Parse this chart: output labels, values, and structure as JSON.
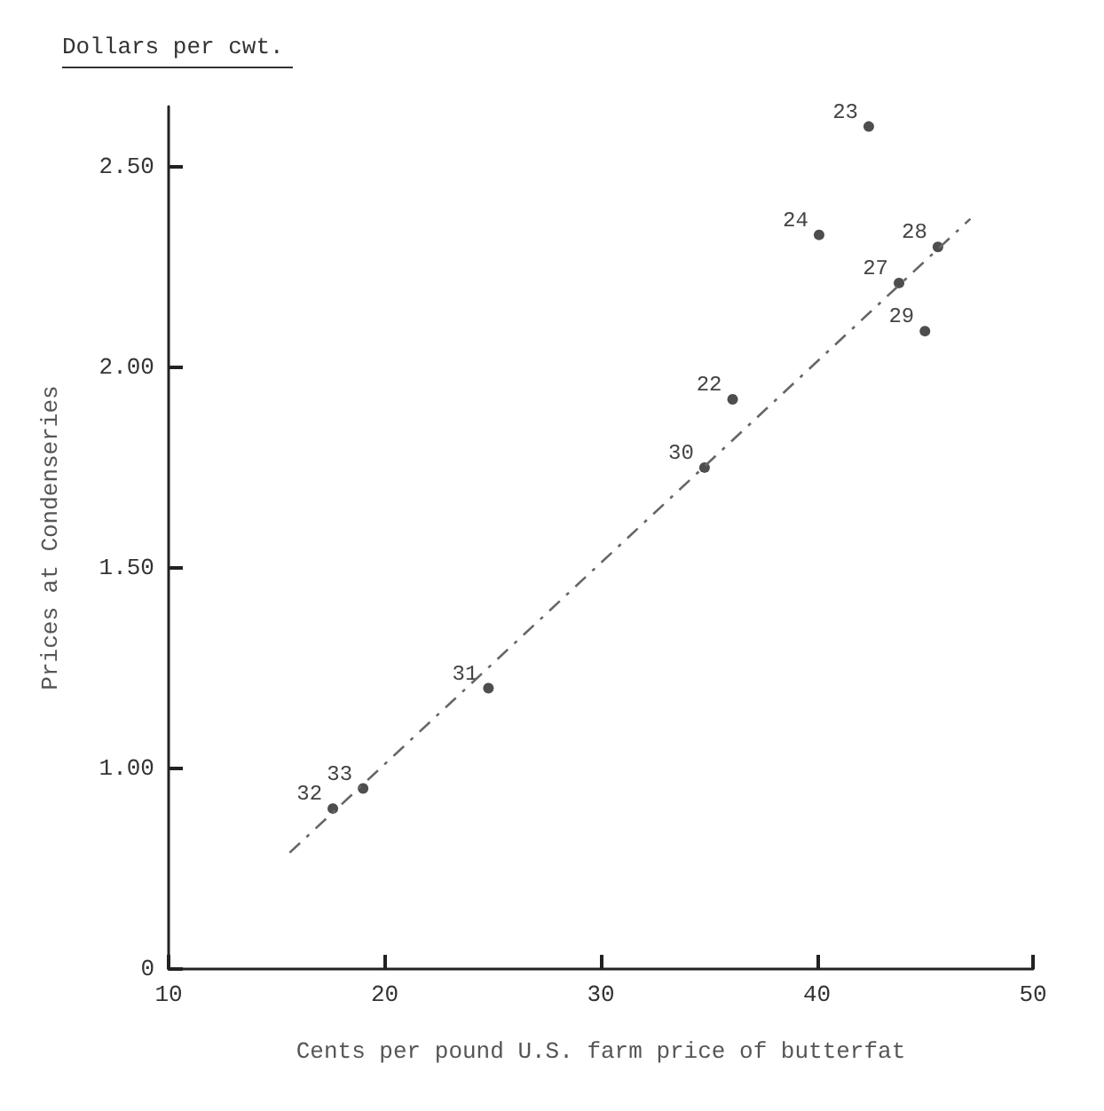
{
  "chart_data": {
    "type": "scatter",
    "xlabel": "Cents per pound U.S. farm price of butterfat",
    "ylabel": "Prices at Condenseries",
    "annotations": [
      "Dollars per cwt.",
      {
        "text": "23",
        "x": 42.4,
        "y": 2.6
      },
      {
        "text": "24",
        "x": 40.1,
        "y": 2.33
      },
      {
        "text": "28",
        "x": 45.6,
        "y": 2.3
      },
      {
        "text": "27",
        "x": 43.8,
        "y": 2.21
      },
      {
        "text": "29",
        "x": 45.0,
        "y": 2.09
      },
      {
        "text": "22",
        "x": 36.1,
        "y": 1.92
      },
      {
        "text": "30",
        "x": 34.8,
        "y": 1.75
      },
      {
        "text": "31",
        "x": 24.8,
        "y": 1.2
      },
      {
        "text": "33",
        "x": 19.0,
        "y": 0.95
      },
      {
        "text": "32",
        "x": 17.6,
        "y": 0.9
      }
    ],
    "series": [
      {
        "color": "#222222",
        "marker": "circle",
        "x": [
          42.4,
          40.1,
          45.6,
          43.8,
          45.0,
          36.1,
          34.8,
          24.8,
          19.0,
          17.6
        ],
        "values": [
          2.6,
          2.33,
          2.3,
          2.21,
          2.09,
          1.92,
          1.75,
          1.2,
          0.95,
          0.9
        ]
      },
      {
        "type": "line",
        "color": "#666666",
        "line_style": "dashed",
        "marker": "none",
        "x": [
          15.6,
          47.1
        ],
        "values": [
          0.79,
          2.37
        ]
      }
    ],
    "xlim": [
      10,
      50
    ],
    "xticks": [
      10,
      20,
      30,
      40,
      50
    ],
    "ylim": [
      0.5,
      2.65
    ],
    "yticks": [
      {
        "value": 0.5,
        "label": "0"
      },
      {
        "value": 1,
        "label": "1.00"
      },
      {
        "value": 1.5,
        "label": "1.50"
      },
      {
        "value": 2,
        "label": "2.00"
      },
      {
        "value": 2.5,
        "label": "2.50"
      }
    ],
    "grid": false
  }
}
